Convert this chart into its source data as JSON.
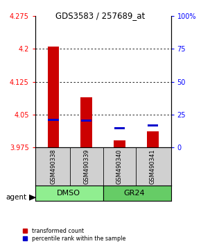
{
  "title": "GDS3583 / 257689_at",
  "samples": [
    "GSM490338",
    "GSM490339",
    "GSM490340",
    "GSM490341"
  ],
  "groups": [
    "DMSO",
    "DMSO",
    "GR24",
    "GR24"
  ],
  "group_labels": [
    "DMSO",
    "GR24"
  ],
  "group_colors_left": "#90EE90",
  "group_colors_right": "#66CC66",
  "red_values": [
    4.205,
    4.09,
    3.992,
    4.012
  ],
  "blue_values": [
    4.038,
    4.036,
    4.019,
    4.026
  ],
  "y_min": 3.975,
  "y_max": 4.275,
  "y_ticks_left": [
    3.975,
    4.05,
    4.125,
    4.2,
    4.275
  ],
  "y_ticks_right_pct": [
    0,
    25,
    50,
    75,
    100
  ],
  "bar_color": "#CC0000",
  "blue_color": "#0000CC",
  "bar_width": 0.35,
  "agent_label": "agent",
  "legend_red": "transformed count",
  "legend_blue": "percentile rank within the sample"
}
